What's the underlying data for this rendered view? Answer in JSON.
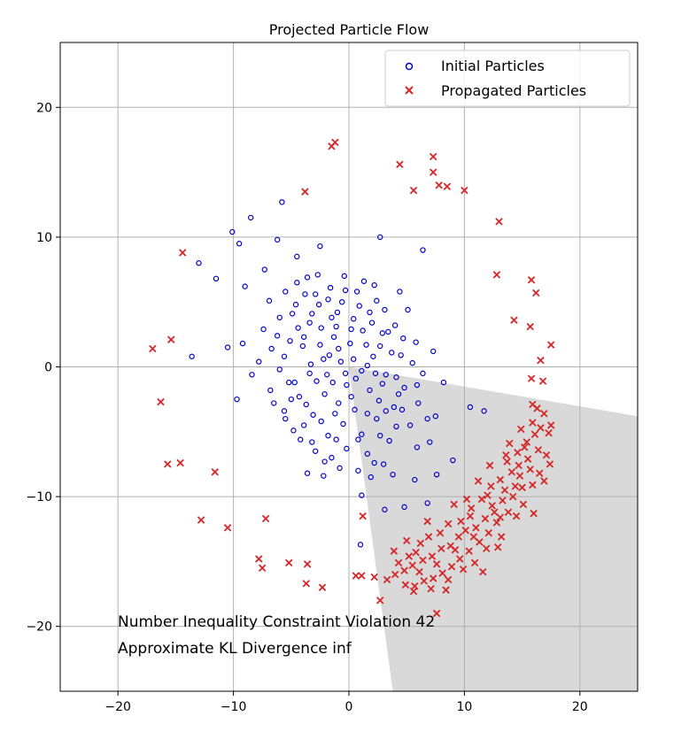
{
  "chart_data": {
    "type": "scatter",
    "title": "Projected Particle Flow",
    "xlabel": "",
    "ylabel": "",
    "xlim": [
      -25,
      25
    ],
    "ylim": [
      -25,
      25
    ],
    "x_ticks": [
      -20,
      -10,
      0,
      10,
      20
    ],
    "y_ticks": [
      -20,
      -10,
      0,
      10,
      20
    ],
    "x_tick_labels": [
      "−20",
      "−10",
      "0",
      "10",
      "20"
    ],
    "y_tick_labels": [
      "−20",
      "−10",
      "0",
      "10",
      "20"
    ],
    "grid": true,
    "legend_position": "top-right",
    "feasible_region": {
      "color": "#d9d9d9",
      "vertices": [
        [
          0,
          0
        ],
        [
          25,
          -3.8
        ],
        [
          25,
          -25
        ],
        [
          3.8,
          -25
        ]
      ]
    },
    "annotations": [
      "Number Inequality Constraint Violation 42",
      "Approximate KL Divergence inf"
    ],
    "series": [
      {
        "name": "Initial Particles",
        "marker": "circle",
        "color": "#0000cc",
        "points": [
          [
            -10.1,
            10.4
          ],
          [
            -8.5,
            11.5
          ],
          [
            -5.8,
            12.7
          ],
          [
            -9.5,
            9.5
          ],
          [
            -13,
            8
          ],
          [
            -11.5,
            6.8
          ],
          [
            -6.2,
            9.8
          ],
          [
            -4.5,
            8.5
          ],
          [
            -2.5,
            9.3
          ],
          [
            2.7,
            10
          ],
          [
            6.4,
            9
          ],
          [
            -7.3,
            7.5
          ],
          [
            -9,
            6.2
          ],
          [
            -10.5,
            1.5
          ],
          [
            -8.4,
            -0.6
          ],
          [
            -9.2,
            1.8
          ],
          [
            -13.6,
            0.8
          ],
          [
            -7.8,
            0.4
          ],
          [
            -9.7,
            -2.5
          ],
          [
            -6,
            3.8
          ],
          [
            -6.7,
            1.4
          ],
          [
            -5.2,
            -1.2
          ],
          [
            -6.5,
            -2.8
          ],
          [
            -4.8,
            -4.9
          ],
          [
            -3.2,
            -5.8
          ],
          [
            -2.1,
            -7.3
          ],
          [
            -3.6,
            -8.2
          ],
          [
            -2.2,
            -8.4
          ],
          [
            -0.8,
            -7.8
          ],
          [
            0.8,
            -8
          ],
          [
            2.2,
            -7.4
          ],
          [
            3.8,
            -8.3
          ],
          [
            5.7,
            -8.7
          ],
          [
            7.6,
            -8.3
          ],
          [
            9,
            -7.2
          ],
          [
            10.5,
            -3.1
          ],
          [
            11.7,
            -3.4
          ],
          [
            8.2,
            -1.2
          ],
          [
            7.3,
            1.2
          ],
          [
            7,
            -5.8
          ],
          [
            1.1,
            -9.9
          ],
          [
            3.1,
            -11
          ],
          [
            4.8,
            -10.8
          ],
          [
            6.8,
            -10.5
          ],
          [
            1,
            -13.7
          ],
          [
            -4.5,
            6.5
          ],
          [
            -3.8,
            5.6
          ],
          [
            -2.7,
            7.1
          ],
          [
            -1.6,
            6.1
          ],
          [
            -0.3,
            5.9
          ],
          [
            1.3,
            6.6
          ],
          [
            2.4,
            5.1
          ],
          [
            4.4,
            5.8
          ],
          [
            5.1,
            4.4
          ],
          [
            4,
            3.2
          ],
          [
            3.7,
            1.1
          ],
          [
            5.8,
            1.9
          ],
          [
            6.4,
            -0.5
          ],
          [
            4.8,
            -1.6
          ],
          [
            6,
            -2.8
          ],
          [
            7.5,
            -3.8
          ],
          [
            5.3,
            -4.5
          ],
          [
            3.9,
            -3.1
          ],
          [
            2.4,
            -4
          ],
          [
            1.1,
            -5.2
          ],
          [
            -0.5,
            -4.4
          ],
          [
            -1.8,
            -5.3
          ],
          [
            -3.1,
            -3.7
          ],
          [
            -4.3,
            -2.3
          ],
          [
            -5.6,
            0.8
          ],
          [
            -6.2,
            2.4
          ],
          [
            -4.9,
            4.1
          ],
          [
            -3.4,
            3.4
          ],
          [
            -2.6,
            4.8
          ],
          [
            -1,
            4.2
          ],
          [
            0.4,
            3.7
          ],
          [
            1.8,
            4.2
          ],
          [
            2.9,
            2.6
          ],
          [
            -2.5,
            1.7
          ],
          [
            -1.3,
            2.3
          ],
          [
            0.1,
            1.8
          ],
          [
            1.2,
            2.8
          ],
          [
            2.1,
            0.8
          ],
          [
            3.2,
            -0.6
          ],
          [
            1.8,
            -1.8
          ],
          [
            0.6,
            -0.9
          ],
          [
            -0.7,
            0.4
          ],
          [
            -1.9,
            -0.6
          ],
          [
            -3.3,
            0.2
          ],
          [
            -4,
            1.6
          ],
          [
            -2.1,
            -2.1
          ],
          [
            -0.9,
            -2.8
          ],
          [
            0.5,
            -3.3
          ],
          [
            2.6,
            -2.6
          ],
          [
            4.3,
            -2.1
          ],
          [
            3.5,
            -5.7
          ],
          [
            1.6,
            -6.7
          ],
          [
            -0.2,
            -6.3
          ],
          [
            -1.5,
            -7
          ],
          [
            -2.9,
            -6.5
          ],
          [
            -4.2,
            -5.6
          ],
          [
            -5.5,
            -4
          ],
          [
            -6.8,
            -1.8
          ],
          [
            -7.4,
            2.9
          ],
          [
            -6.9,
            5.1
          ],
          [
            -5.5,
            5.8
          ],
          [
            -3.9,
            2.3
          ],
          [
            -2.4,
            3
          ],
          [
            -1.1,
            3.1
          ],
          [
            0.2,
            2.9
          ],
          [
            1.5,
            1.7
          ],
          [
            2.7,
            1.6
          ],
          [
            3.1,
            4.4
          ],
          [
            4.7,
            2.2
          ],
          [
            5.5,
            0.3
          ],
          [
            4.1,
            -0.8
          ],
          [
            2.9,
            -1.3
          ],
          [
            1.1,
            -0.3
          ],
          [
            -0.2,
            -1.4
          ],
          [
            -1.4,
            -1.2
          ],
          [
            -2.8,
            -1.1
          ],
          [
            -3.7,
            -2.9
          ],
          [
            -5,
            -2.5
          ],
          [
            -6,
            -0.2
          ],
          [
            -5.1,
            2
          ],
          [
            -4.4,
            3
          ],
          [
            -3.2,
            4.1
          ],
          [
            -1.8,
            5.2
          ],
          [
            -0.6,
            5
          ],
          [
            0.9,
            4.7
          ],
          [
            2,
            3.4
          ],
          [
            3.4,
            2.7
          ],
          [
            4.5,
            0.9
          ],
          [
            5.9,
            -1.4
          ],
          [
            4.6,
            -3.3
          ],
          [
            3.2,
            -3.4
          ],
          [
            1.6,
            -3.6
          ],
          [
            0.2,
            -2.3
          ],
          [
            -1.2,
            -3.6
          ],
          [
            -2.4,
            -4.2
          ],
          [
            -3.9,
            -4.5
          ],
          [
            -4.7,
            -1.2
          ],
          [
            -3.4,
            -0.5
          ],
          [
            -2.2,
            0.6
          ],
          [
            -0.9,
            1.4
          ],
          [
            0.4,
            0.6
          ],
          [
            1.6,
            0.1
          ],
          [
            2.3,
            -0.5
          ],
          [
            -1.5,
            3.8
          ],
          [
            -2.9,
            5.6
          ],
          [
            0.7,
            5.8
          ],
          [
            2.2,
            6.3
          ],
          [
            -0.4,
            7
          ],
          [
            -3.6,
            6.9
          ],
          [
            -1.1,
            -5.6
          ],
          [
            0.8,
            -5.6
          ],
          [
            2.7,
            -5.3
          ],
          [
            4.1,
            -4.6
          ],
          [
            5.9,
            -6.2
          ],
          [
            6.8,
            -4
          ],
          [
            -5.6,
            -3.4
          ],
          [
            -4.6,
            4.8
          ],
          [
            1.9,
            -8.5
          ],
          [
            3,
            -7.5
          ],
          [
            -1.7,
            0.9
          ],
          [
            -0.3,
            -0.5
          ]
        ]
      },
      {
        "name": "Propagated Particles",
        "marker": "x",
        "color": "#d62728",
        "points": [
          [
            -1.5,
            17
          ],
          [
            -1.2,
            17.3
          ],
          [
            7.3,
            16.2
          ],
          [
            4.4,
            15.6
          ],
          [
            7.3,
            15
          ],
          [
            -3.8,
            13.5
          ],
          [
            5.6,
            13.6
          ],
          [
            7.8,
            14
          ],
          [
            8.5,
            13.9
          ],
          [
            10,
            13.6
          ],
          [
            13,
            11.2
          ],
          [
            -14.4,
            8.8
          ],
          [
            12.8,
            7.1
          ],
          [
            15.8,
            6.7
          ],
          [
            16.2,
            5.7
          ],
          [
            14.3,
            3.6
          ],
          [
            15.7,
            3.1
          ],
          [
            -15.4,
            2.1
          ],
          [
            -17,
            1.4
          ],
          [
            17.5,
            1.7
          ],
          [
            16.6,
            0.5
          ],
          [
            15.8,
            -0.9
          ],
          [
            16.8,
            -1.1
          ],
          [
            -16.3,
            -2.7
          ],
          [
            -15.7,
            -7.5
          ],
          [
            -14.6,
            -7.4
          ],
          [
            -11.6,
            -8.1
          ],
          [
            -12.8,
            -11.8
          ],
          [
            -10.5,
            -12.4
          ],
          [
            -7.2,
            -11.7
          ],
          [
            1.2,
            -11.5
          ],
          [
            -7.8,
            -14.8
          ],
          [
            -7.5,
            -15.5
          ],
          [
            -5.2,
            -15.1
          ],
          [
            -3.6,
            -15.2
          ],
          [
            -3.7,
            -16.7
          ],
          [
            -2.3,
            -17
          ],
          [
            0.6,
            -16.1
          ],
          [
            1.1,
            -16.1
          ],
          [
            2.2,
            -16.2
          ],
          [
            3.3,
            -16.4
          ],
          [
            2.7,
            -18
          ],
          [
            7.6,
            -19
          ],
          [
            5.6,
            -17.3
          ],
          [
            16.3,
            -3.2
          ],
          [
            16.9,
            -3.6
          ],
          [
            12.2,
            -7.6
          ],
          [
            17.3,
            -5.1
          ],
          [
            17.1,
            -6.8
          ],
          [
            16.5,
            -8.2
          ],
          [
            15.9,
            -9.1
          ],
          [
            15,
            -9.3
          ],
          [
            14.2,
            -10
          ],
          [
            13.3,
            -10.3
          ],
          [
            12.6,
            -11.2
          ],
          [
            11.8,
            -11.7
          ],
          [
            11,
            -12.4
          ],
          [
            10.1,
            -12.6
          ],
          [
            9.5,
            -13.1
          ],
          [
            8.8,
            -13.8
          ],
          [
            8,
            -14
          ],
          [
            7.2,
            -14.6
          ],
          [
            6.4,
            -14.9
          ],
          [
            5.5,
            -15.3
          ],
          [
            4.8,
            -15.7
          ],
          [
            4,
            -16
          ],
          [
            3.9,
            -14.2
          ],
          [
            5,
            -13.4
          ],
          [
            5.8,
            -14.3
          ],
          [
            6.9,
            -13.1
          ],
          [
            8.6,
            -12.1
          ],
          [
            9.7,
            -11.9
          ],
          [
            10.6,
            -10.9
          ],
          [
            11.5,
            -10.2
          ],
          [
            12.3,
            -9.2
          ],
          [
            13.1,
            -8.7
          ],
          [
            13.7,
            -7.3
          ],
          [
            14.6,
            -6.6
          ],
          [
            15.4,
            -5.8
          ],
          [
            15.9,
            -4.3
          ],
          [
            16.6,
            -4.7
          ],
          [
            13.9,
            -5.9
          ],
          [
            14.8,
            -8.4
          ],
          [
            15.5,
            -7.1
          ],
          [
            13.5,
            -9.5
          ],
          [
            12.8,
            -12
          ],
          [
            12.1,
            -12.8
          ],
          [
            11.3,
            -13.5
          ],
          [
            10.4,
            -14.2
          ],
          [
            9.6,
            -14.8
          ],
          [
            8.9,
            -15.4
          ],
          [
            8.1,
            -15.9
          ],
          [
            7.3,
            -16.3
          ],
          [
            6.5,
            -16.5
          ],
          [
            5.7,
            -16.9
          ],
          [
            4.9,
            -16.8
          ],
          [
            4.3,
            -15.1
          ],
          [
            6.1,
            -15.8
          ],
          [
            7.6,
            -15.2
          ],
          [
            9.2,
            -14.1
          ],
          [
            10.8,
            -13.1
          ],
          [
            12.4,
            -10.7
          ],
          [
            14.1,
            -8.1
          ],
          [
            15.2,
            -6.2
          ],
          [
            16.1,
            -5.2
          ],
          [
            16.4,
            -6.4
          ],
          [
            15.7,
            -7.9
          ],
          [
            14.4,
            -9.2
          ],
          [
            13.8,
            -11.2
          ],
          [
            13.1,
            -11.6
          ],
          [
            11.9,
            -14
          ],
          [
            10.9,
            -15.1
          ],
          [
            9.9,
            -15.6
          ],
          [
            8.6,
            -16.4
          ],
          [
            7.1,
            -17.1
          ],
          [
            12.9,
            -13.9
          ],
          [
            14.5,
            -11.5
          ],
          [
            16.9,
            -8.8
          ],
          [
            17.4,
            -7.5
          ],
          [
            17.5,
            -4.5
          ],
          [
            11.2,
            -8.8
          ],
          [
            10.2,
            -10.2
          ],
          [
            9.1,
            -10.6
          ],
          [
            14.9,
            -4.8
          ],
          [
            6.8,
            -11.9
          ],
          [
            10.5,
            -11.5
          ],
          [
            12,
            -9.9
          ],
          [
            13.6,
            -6.8
          ],
          [
            15.1,
            -10.6
          ],
          [
            16,
            -11.3
          ],
          [
            11.6,
            -15.8
          ],
          [
            8.4,
            -17.2
          ],
          [
            5.2,
            -14.6
          ],
          [
            7.9,
            -12.8
          ],
          [
            6.2,
            -13.6
          ],
          [
            14.7,
            -7.6
          ],
          [
            15.9,
            -2.9
          ],
          [
            13.2,
            -13.1
          ]
        ]
      }
    ]
  }
}
